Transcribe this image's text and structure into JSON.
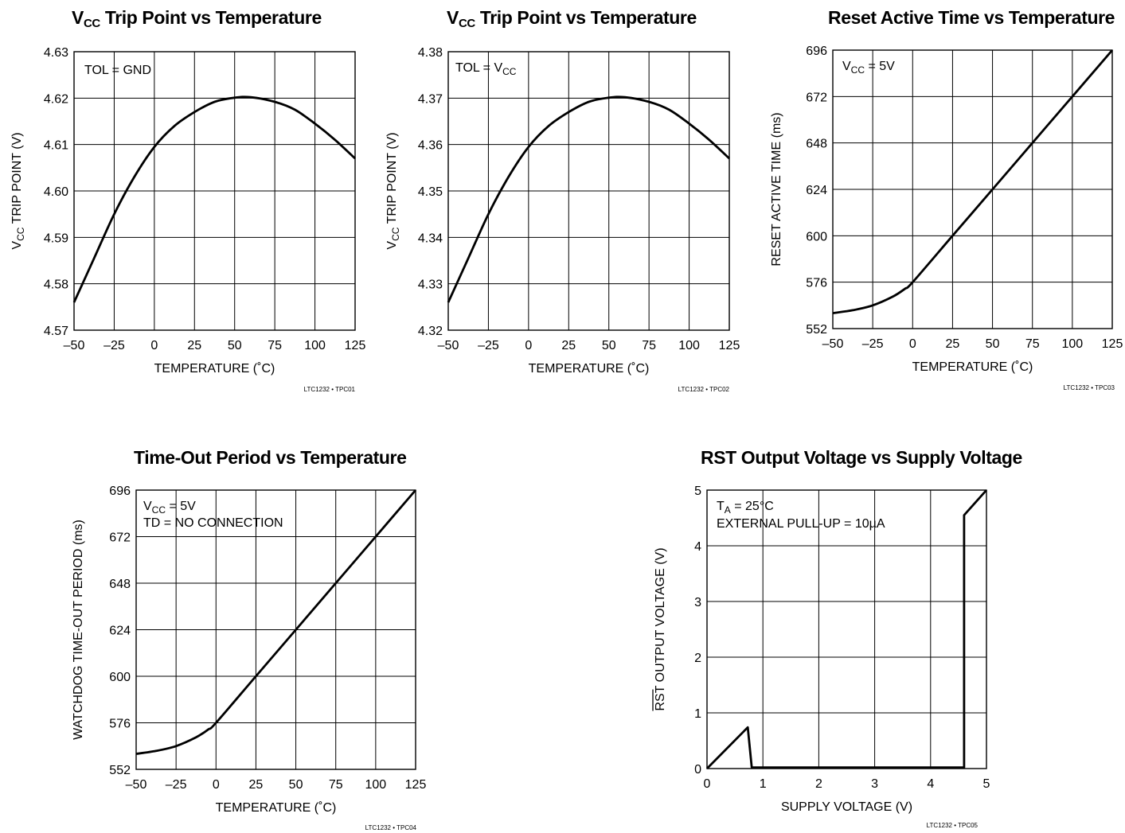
{
  "chart_data": [
    {
      "id": "tpc01",
      "type": "line",
      "title": "VCC Trip Point vs Temperature",
      "title_main": "V",
      "title_sub": "CC",
      "title_rest": " Trip Point vs Temperature",
      "xlabel": "TEMPERATURE (˚C)",
      "ylabel": "VCC TRIP POINT (V)",
      "ylabel_main": "V",
      "ylabel_sub": "CC",
      "ylabel_rest": " TRIP POINT (V)",
      "xlim": [
        -50,
        125
      ],
      "ylim": [
        4.57,
        4.63
      ],
      "x_ticks": [
        -50,
        -25,
        0,
        25,
        50,
        75,
        100,
        125
      ],
      "x_tick_labels": [
        "–50",
        "–25",
        "0",
        "25",
        "50",
        "75",
        "100",
        "125"
      ],
      "y_ticks": [
        4.57,
        4.58,
        4.59,
        4.6,
        4.61,
        4.62,
        4.63
      ],
      "y_tick_labels": [
        "4.57",
        "4.58",
        "4.59",
        "4.60",
        "4.61",
        "4.62",
        "4.63"
      ],
      "grid": true,
      "annotation": [
        {
          "main": "TOL = GND",
          "sub": "",
          "rest": ""
        }
      ],
      "code": "LTC1232 • TPC01",
      "series": [
        {
          "x": [
            -50,
            -37.5,
            -25,
            -12.5,
            0,
            12.5,
            25,
            37.5,
            50,
            60,
            75,
            87.5,
            100,
            112.5,
            125
          ],
          "y": [
            4.576,
            4.5855,
            4.595,
            4.603,
            4.6095,
            4.614,
            4.617,
            4.6192,
            4.6201,
            4.6202,
            4.6192,
            4.6175,
            4.6145,
            4.611,
            4.607
          ]
        }
      ]
    },
    {
      "id": "tpc02",
      "type": "line",
      "title": "VCC Trip Point vs Temperature",
      "title_main": "V",
      "title_sub": "CC",
      "title_rest": " Trip Point vs Temperature",
      "xlabel": "TEMPERATURE (˚C)",
      "ylabel": "VCC TRIP POINT (V)",
      "ylabel_main": "V",
      "ylabel_sub": "CC",
      "ylabel_rest": " TRIP POINT (V)",
      "xlim": [
        -50,
        125
      ],
      "ylim": [
        4.32,
        4.38
      ],
      "x_ticks": [
        -50,
        -25,
        0,
        25,
        50,
        75,
        100,
        125
      ],
      "x_tick_labels": [
        "–50",
        "–25",
        "0",
        "25",
        "50",
        "75",
        "100",
        "125"
      ],
      "y_ticks": [
        4.32,
        4.33,
        4.34,
        4.35,
        4.36,
        4.37,
        4.38
      ],
      "y_tick_labels": [
        "4.32",
        "4.33",
        "4.34",
        "4.35",
        "4.36",
        "4.37",
        "4.38"
      ],
      "grid": true,
      "annotation": [
        {
          "main": "TOL = V",
          "sub": "CC",
          "rest": ""
        }
      ],
      "code": "LTC1232 • TPC02",
      "series": [
        {
          "x": [
            -50,
            -37.5,
            -25,
            -12.5,
            0,
            12.5,
            25,
            37.5,
            50,
            60,
            75,
            87.5,
            100,
            112.5,
            125
          ],
          "y": [
            4.326,
            4.3355,
            4.345,
            4.353,
            4.3595,
            4.364,
            4.367,
            4.3692,
            4.3701,
            4.3702,
            4.3692,
            4.3675,
            4.3645,
            4.361,
            4.357
          ]
        }
      ]
    },
    {
      "id": "tpc03",
      "type": "line",
      "title": "Reset Active Time vs Temperature",
      "title_main": "Reset Active Time vs Temperature",
      "title_sub": "",
      "title_rest": "",
      "xlabel": "TEMPERATURE (˚C)",
      "ylabel": "RESET ACTIVE TIME (ms)",
      "ylabel_main": "RESET ACTIVE TIME (ms)",
      "ylabel_sub": "",
      "ylabel_rest": "",
      "xlim": [
        -50,
        125
      ],
      "ylim": [
        552,
        696
      ],
      "x_ticks": [
        -50,
        -25,
        0,
        25,
        50,
        75,
        100,
        125
      ],
      "x_tick_labels": [
        "–50",
        "–25",
        "0",
        "25",
        "50",
        "75",
        "100",
        "125"
      ],
      "y_ticks": [
        552,
        576,
        600,
        624,
        648,
        672,
        696
      ],
      "y_tick_labels": [
        "552",
        "576",
        "600",
        "624",
        "648",
        "672",
        "696"
      ],
      "grid": true,
      "annotation": [
        {
          "main": "V",
          "sub": "CC",
          "rest": " = 5V"
        }
      ],
      "code": "LTC1232 • TPC03",
      "series": [
        {
          "x": [
            -50,
            -37.5,
            -25,
            -12.5,
            -5,
            0,
            25,
            50,
            75,
            100,
            125
          ],
          "y": [
            560,
            561.5,
            564,
            568.5,
            572.5,
            576,
            600,
            624,
            648,
            672,
            696
          ]
        }
      ]
    },
    {
      "id": "tpc04",
      "type": "line",
      "title": "Time-Out Period vs Temperature",
      "title_main": "Time-Out Period vs Temperature",
      "title_sub": "",
      "title_rest": "",
      "xlabel": "TEMPERATURE (˚C)",
      "ylabel": "WATCHDOG TIME-OUT PERIOD (ms)",
      "ylabel_main": "WATCHDOG TIME-OUT PERIOD (ms)",
      "ylabel_sub": "",
      "ylabel_rest": "",
      "xlim": [
        -50,
        125
      ],
      "ylim": [
        552,
        696
      ],
      "x_ticks": [
        -50,
        -25,
        0,
        25,
        50,
        75,
        100,
        125
      ],
      "x_tick_labels": [
        "–50",
        "–25",
        "0",
        "25",
        "50",
        "75",
        "100",
        "125"
      ],
      "y_ticks": [
        552,
        576,
        600,
        624,
        648,
        672,
        696
      ],
      "y_tick_labels": [
        "552",
        "576",
        "600",
        "624",
        "648",
        "672",
        "696"
      ],
      "grid": true,
      "annotation": [
        {
          "main": "V",
          "sub": "CC",
          "rest": " = 5V"
        },
        {
          "main": "TD = NO CONNECTION",
          "sub": "",
          "rest": ""
        }
      ],
      "code": "LTC1232 • TPC04",
      "series": [
        {
          "x": [
            -50,
            -37.5,
            -25,
            -12.5,
            -5,
            0,
            25,
            50,
            75,
            100,
            125
          ],
          "y": [
            560,
            561.5,
            564,
            568.5,
            572.5,
            576,
            600,
            624,
            648,
            672,
            696
          ]
        }
      ]
    },
    {
      "id": "tpc05",
      "type": "line",
      "title": "RST Output Voltage vs Supply Voltage",
      "title_main": "RST Output Voltage vs Supply Voltage",
      "title_sub": "",
      "title_rest": "",
      "xlabel": "SUPPLY VOLTAGE (V)",
      "ylabel": "RST OUTPUT VOLTAGE (V)",
      "ylabel_main": "RST OUTPUT VOLTAGE (V)",
      "ylabel_sub": "",
      "ylabel_rest": "",
      "ylabel_overline_chars": 3,
      "xlim": [
        0,
        5
      ],
      "ylim": [
        0,
        5
      ],
      "x_ticks": [
        0,
        1,
        2,
        3,
        4,
        5
      ],
      "x_tick_labels": [
        "0",
        "1",
        "2",
        "3",
        "4",
        "5"
      ],
      "y_ticks": [
        0,
        1,
        2,
        3,
        4,
        5
      ],
      "y_tick_labels": [
        "0",
        "1",
        "2",
        "3",
        "4",
        "5"
      ],
      "grid": true,
      "annotation": [
        {
          "main": "T",
          "sub": "A",
          "rest": " = 25°C"
        },
        {
          "main": "EXTERNAL PULL-UP = 10µA",
          "sub": "",
          "rest": ""
        }
      ],
      "code": "LTC1232 • TPC05",
      "series": [
        {
          "x": [
            0,
            0.73,
            0.8,
            4.6,
            4.6,
            5
          ],
          "y": [
            0,
            0.74,
            0.02,
            0.02,
            4.55,
            5
          ]
        }
      ]
    }
  ]
}
